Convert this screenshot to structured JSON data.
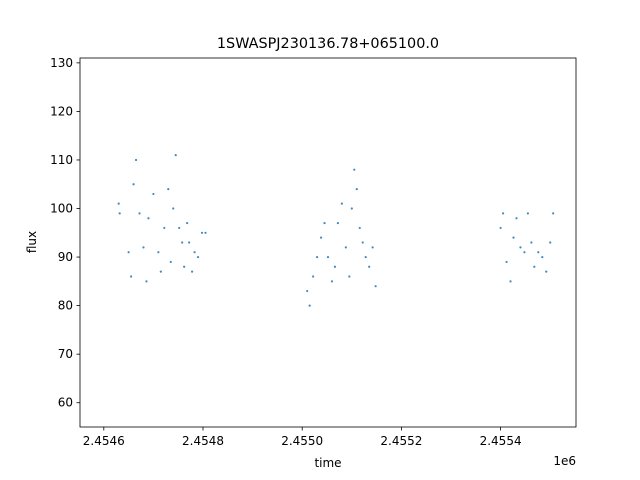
{
  "chart_data": {
    "type": "scatter",
    "title": "1SWASPJ230136.78+065100.0",
    "xlabel": "time",
    "ylabel": "flux",
    "x_offset_label": "1e6",
    "xlim": [
      2454552,
      2455552
    ],
    "ylim": [
      55,
      131
    ],
    "x_ticks": [
      {
        "value": 2454600,
        "label": "2.4546"
      },
      {
        "value": 2454800,
        "label": "2.4548"
      },
      {
        "value": 2455000,
        "label": "2.4550"
      },
      {
        "value": 2455200,
        "label": "2.4552"
      },
      {
        "value": 2455400,
        "label": "2.4554"
      }
    ],
    "y_ticks": [
      {
        "value": 60,
        "label": "60"
      },
      {
        "value": 70,
        "label": "70"
      },
      {
        "value": 80,
        "label": "80"
      },
      {
        "value": 90,
        "label": "90"
      },
      {
        "value": 100,
        "label": "100"
      },
      {
        "value": 110,
        "label": "110"
      },
      {
        "value": 120,
        "label": "120"
      },
      {
        "value": 130,
        "label": "130"
      }
    ],
    "grid": false,
    "marker_color": "#1f77b4",
    "series": [
      {
        "x": [
          2454630,
          2454632,
          2454650,
          2454655,
          2454660,
          2454665,
          2454672,
          2454680,
          2454686,
          2454690,
          2454700,
          2454710,
          2454715,
          2454722,
          2454730,
          2454735,
          2454740,
          2454745,
          2454752,
          2454758,
          2454762,
          2454768,
          2454772,
          2454778,
          2454783,
          2454790,
          2454798,
          2454805,
          2455010,
          2455015,
          2455022,
          2455030,
          2455038,
          2455045,
          2455052,
          2455060,
          2455066,
          2455072,
          2455080,
          2455088,
          2455095,
          2455100,
          2455105,
          2455110,
          2455116,
          2455122,
          2455128,
          2455135,
          2455142,
          2455148,
          2455400,
          2455405,
          2455412,
          2455420,
          2455426,
          2455432,
          2455440,
          2455448,
          2455455,
          2455462,
          2455468,
          2455476,
          2455484,
          2455492,
          2455500,
          2455506
        ],
        "y": [
          101,
          99,
          91,
          86,
          105,
          110,
          99,
          92,
          85,
          98,
          103,
          91,
          87,
          96,
          104,
          89,
          100,
          111,
          96,
          93,
          88,
          97,
          93,
          87,
          91,
          90,
          95,
          95,
          83,
          80,
          86,
          90,
          94,
          97,
          90,
          85,
          88,
          97,
          101,
          92,
          86,
          100,
          108,
          104,
          96,
          93,
          90,
          88,
          92,
          84,
          96,
          99,
          89,
          85,
          94,
          98,
          92,
          91,
          99,
          93,
          88,
          91,
          90,
          87,
          93,
          99
        ]
      }
    ]
  }
}
